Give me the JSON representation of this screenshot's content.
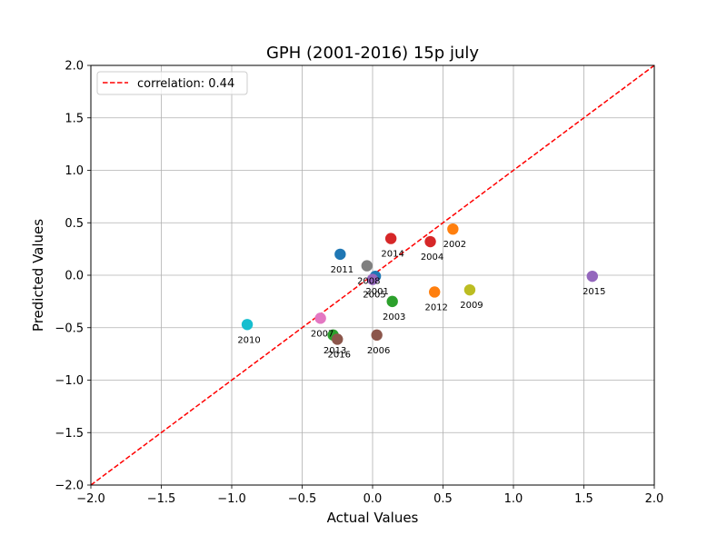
{
  "chart_data": {
    "type": "scatter",
    "title": "GPH (2001-2016) 15p july",
    "xlabel": "Actual Values",
    "ylabel": "Predicted Values",
    "xlim": [
      -2.0,
      2.0
    ],
    "ylim": [
      -2.0,
      2.0
    ],
    "xticks": [
      "−2.0",
      "−1.5",
      "−1.0",
      "−0.5",
      "0.0",
      "0.5",
      "1.0",
      "1.5",
      "2.0"
    ],
    "yticks": [
      "−2.0",
      "−1.5",
      "−1.0",
      "−0.5",
      "0.0",
      "0.5",
      "1.0",
      "1.5",
      "2.0"
    ],
    "tick_values": [
      -2.0,
      -1.5,
      -1.0,
      -0.5,
      0.0,
      0.5,
      1.0,
      1.5,
      2.0
    ],
    "grid": true,
    "legend": {
      "placement": "upper-left",
      "label": "correlation: 0.44"
    },
    "reference_line": {
      "style": "dashed",
      "color": "#ff0000",
      "from": [
        -2.0,
        -2.0
      ],
      "to": [
        2.0,
        2.0
      ]
    },
    "points": [
      {
        "label": "2001",
        "x": 0.02,
        "y": -0.01,
        "color": "#1f77b4"
      },
      {
        "label": "2002",
        "x": 0.57,
        "y": 0.44,
        "color": "#ff7f0e"
      },
      {
        "label": "2003",
        "x": 0.14,
        "y": -0.25,
        "color": "#2ca02c"
      },
      {
        "label": "2004",
        "x": 0.41,
        "y": 0.32,
        "color": "#d62728"
      },
      {
        "label": "2005",
        "x": 0.0,
        "y": -0.04,
        "color": "#9467bd"
      },
      {
        "label": "2006",
        "x": 0.03,
        "y": -0.57,
        "color": "#8c564b"
      },
      {
        "label": "2007",
        "x": -0.37,
        "y": -0.41,
        "color": "#e377c2"
      },
      {
        "label": "2008",
        "x": -0.04,
        "y": 0.09,
        "color": "#7f7f7f"
      },
      {
        "label": "2009",
        "x": 0.69,
        "y": -0.14,
        "color": "#bcbd22"
      },
      {
        "label": "2010",
        "x": -0.89,
        "y": -0.47,
        "color": "#17becf"
      },
      {
        "label": "2011",
        "x": -0.23,
        "y": 0.2,
        "color": "#1f77b4"
      },
      {
        "label": "2012",
        "x": 0.44,
        "y": -0.16,
        "color": "#ff7f0e"
      },
      {
        "label": "2013",
        "x": -0.28,
        "y": -0.57,
        "color": "#2ca02c"
      },
      {
        "label": "2014",
        "x": 0.13,
        "y": 0.35,
        "color": "#d62728"
      },
      {
        "label": "2015",
        "x": 1.56,
        "y": -0.01,
        "color": "#9467bd"
      },
      {
        "label": "2016",
        "x": -0.25,
        "y": -0.61,
        "color": "#8c564b"
      }
    ]
  }
}
